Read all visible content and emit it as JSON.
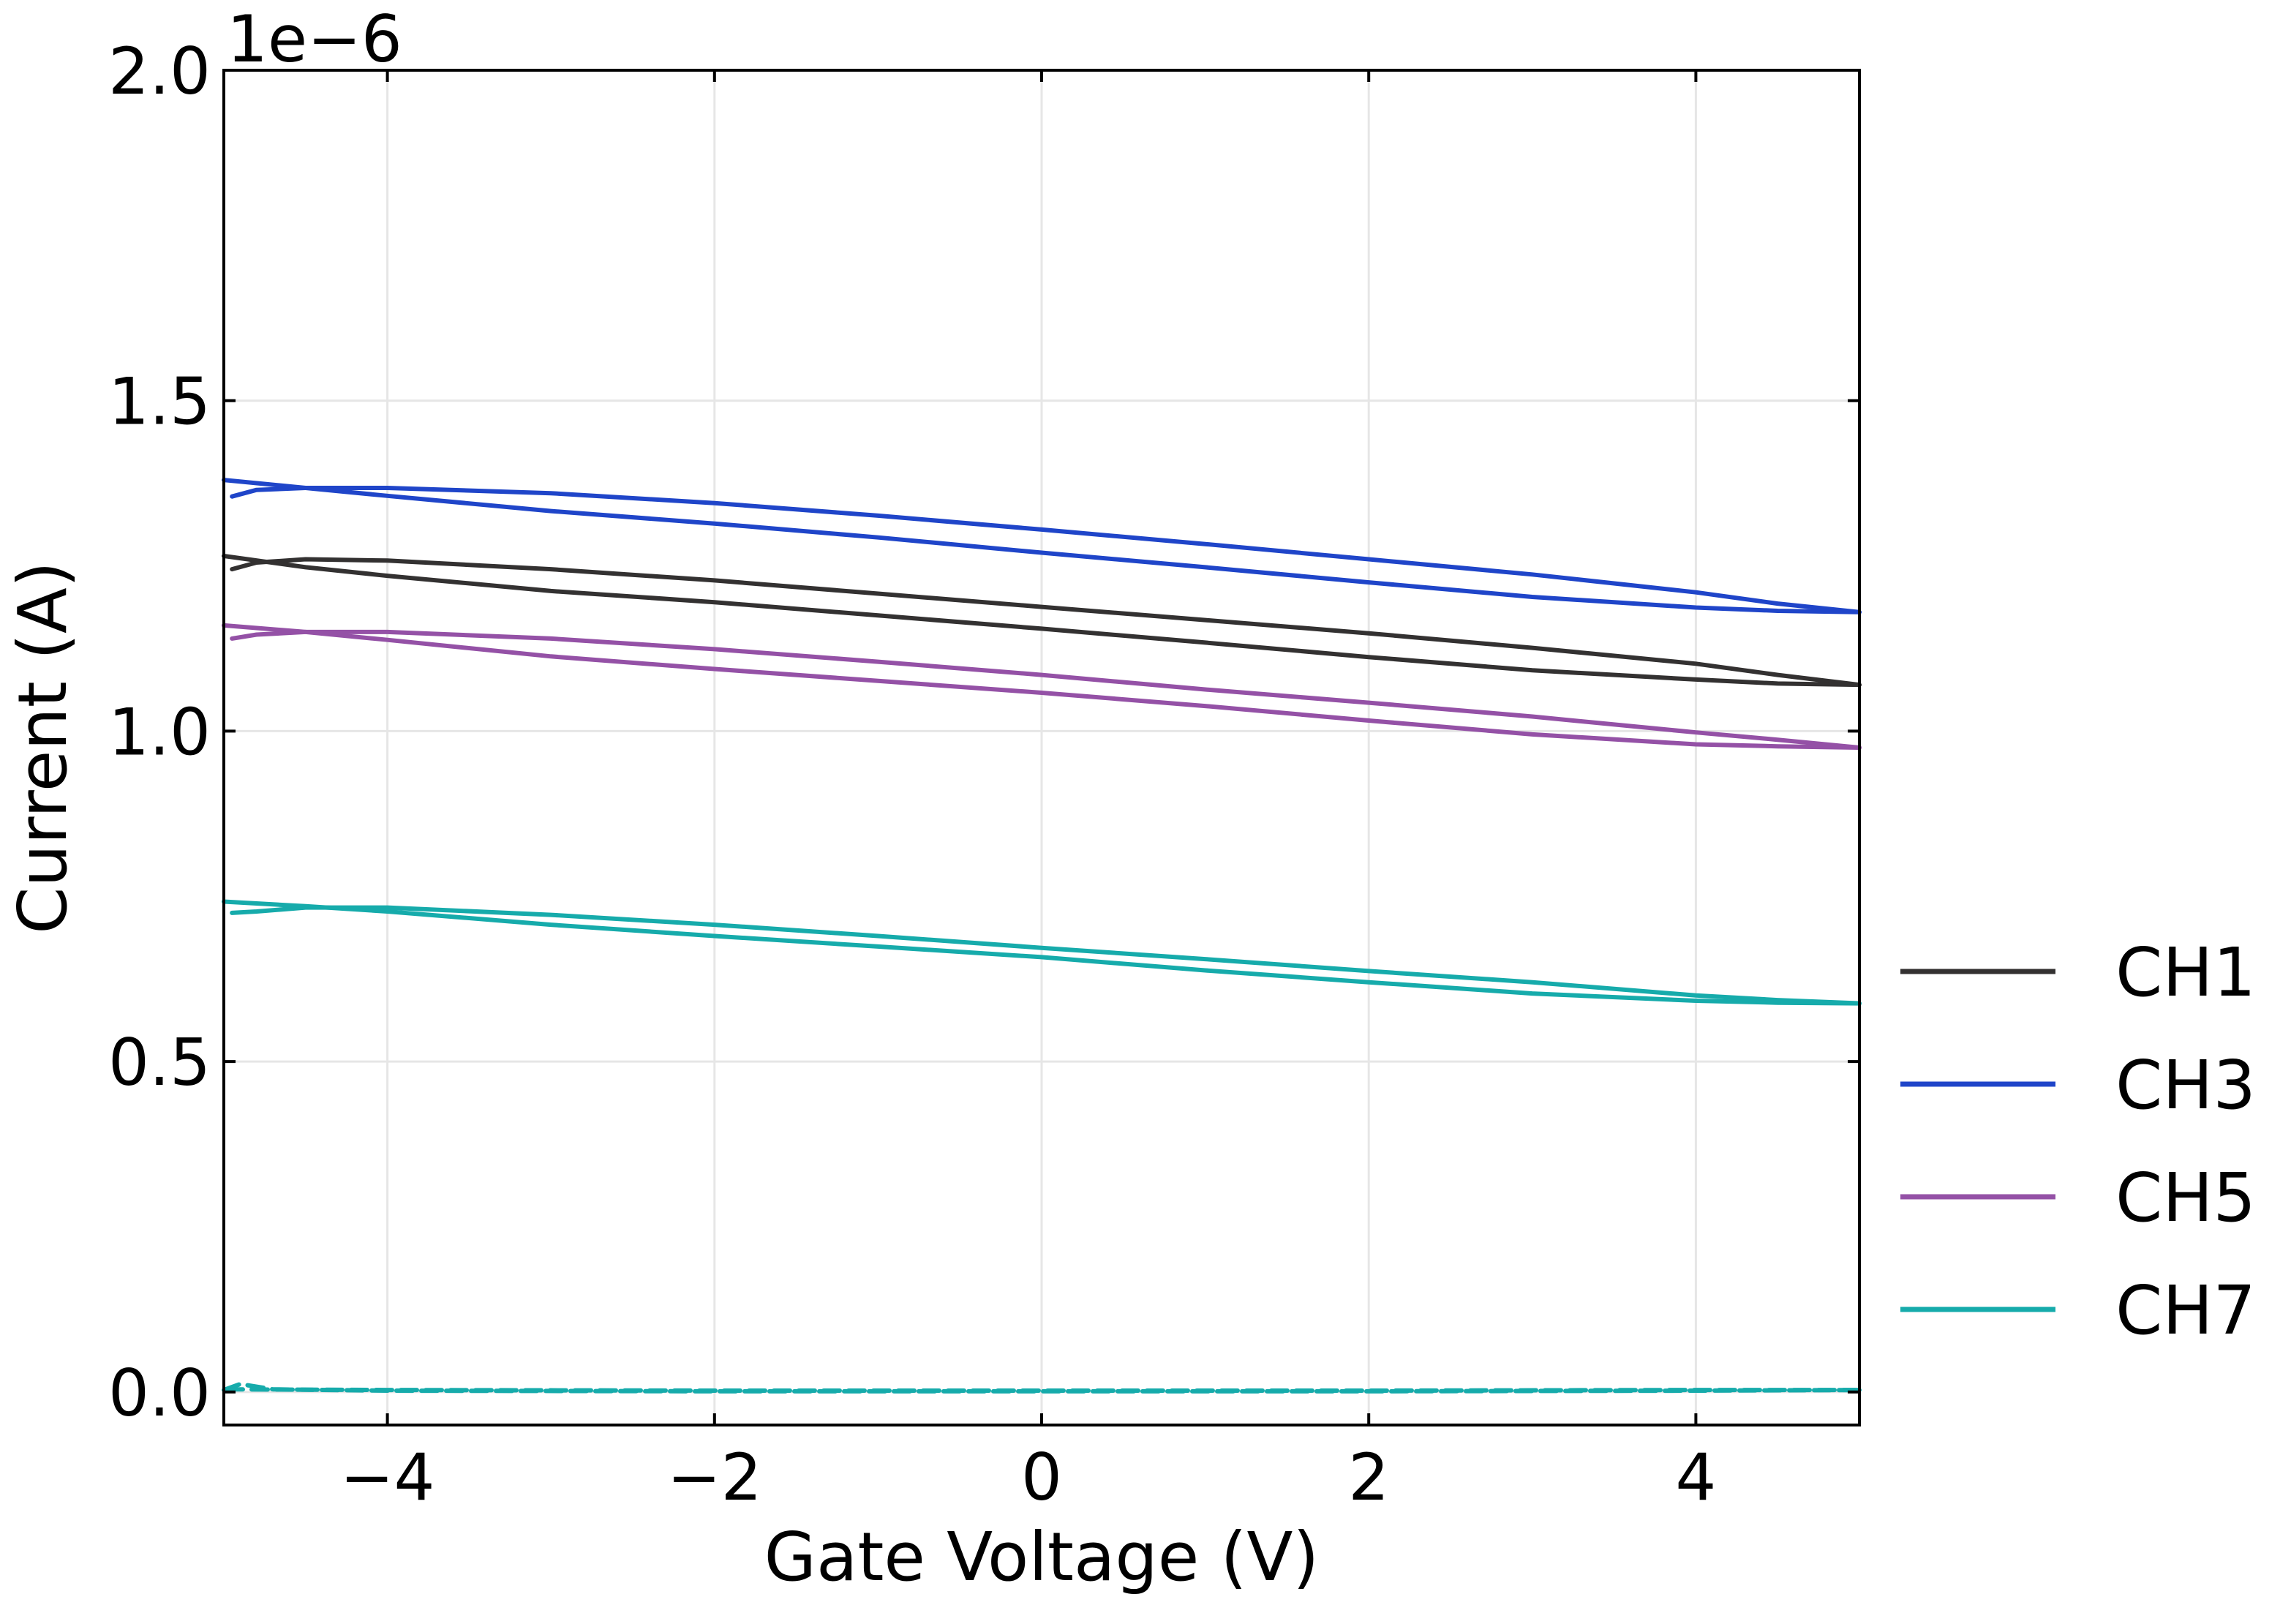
{
  "chart_data": {
    "type": "line",
    "xlabel": "Gate Voltage (V)",
    "ylabel": "Current (A)",
    "y_multiplier_label": "1e−6",
    "xlim": [
      -5,
      5
    ],
    "ylim": [
      -0.05,
      2.0
    ],
    "x_ticks": [
      -4,
      -2,
      0,
      2,
      4
    ],
    "x_tick_labels": [
      "−4",
      "−2",
      "0",
      "2",
      "4"
    ],
    "y_ticks": [
      0.0,
      0.5,
      1.0,
      1.5,
      2.0
    ],
    "y_tick_labels": [
      "0.0",
      "0.5",
      "1.0",
      "1.5",
      "2.0"
    ],
    "grid": true,
    "legend_position": "right, outside plot",
    "series": [
      {
        "name": "CH1",
        "color": "#333131",
        "style": "solid",
        "sweeps": [
          {
            "x": [
              -4.95,
              -4.8,
              -4.5,
              -4.0,
              -3.0,
              -2.0,
              -1.0,
              0.0,
              1.0,
              2.0,
              3.0,
              4.0,
              4.5,
              5.0
            ],
            "y": [
              1.245,
              1.255,
              1.26,
              1.258,
              1.245,
              1.228,
              1.208,
              1.188,
              1.168,
              1.148,
              1.126,
              1.102,
              1.085,
              1.07
            ]
          },
          {
            "x": [
              5.0,
              4.5,
              4.0,
              3.0,
              2.0,
              1.0,
              0.0,
              -1.0,
              -2.0,
              -3.0,
              -4.0,
              -4.5,
              -5.0
            ],
            "y": [
              1.07,
              1.072,
              1.078,
              1.092,
              1.112,
              1.134,
              1.155,
              1.175,
              1.195,
              1.212,
              1.235,
              1.248,
              1.265
            ]
          }
        ]
      },
      {
        "name": "CH3",
        "color": "#1f45c9",
        "style": "solid",
        "sweeps": [
          {
            "x": [
              -4.95,
              -4.8,
              -4.5,
              -4.0,
              -3.0,
              -2.0,
              -1.0,
              0.0,
              1.0,
              2.0,
              3.0,
              4.0,
              4.5,
              5.0
            ],
            "y": [
              1.355,
              1.365,
              1.368,
              1.368,
              1.36,
              1.345,
              1.326,
              1.305,
              1.283,
              1.26,
              1.237,
              1.21,
              1.193,
              1.18
            ]
          },
          {
            "x": [
              5.0,
              4.5,
              4.0,
              3.0,
              2.0,
              1.0,
              0.0,
              -1.0,
              -2.0,
              -3.0,
              -4.0,
              -4.5,
              -5.0
            ],
            "y": [
              1.18,
              1.182,
              1.187,
              1.203,
              1.225,
              1.248,
              1.27,
              1.293,
              1.314,
              1.333,
              1.356,
              1.368,
              1.38
            ]
          }
        ]
      },
      {
        "name": "CH5",
        "color": "#9451a6",
        "style": "solid",
        "sweeps": [
          {
            "x": [
              -4.95,
              -4.8,
              -4.5,
              -4.0,
              -3.0,
              -2.0,
              -1.0,
              0.0,
              1.0,
              2.0,
              3.0,
              4.0,
              4.5,
              5.0
            ],
            "y": [
              1.14,
              1.146,
              1.15,
              1.15,
              1.14,
              1.124,
              1.105,
              1.085,
              1.063,
              1.043,
              1.022,
              0.998,
              0.987,
              0.975
            ]
          },
          {
            "x": [
              5.0,
              4.5,
              4.0,
              3.0,
              2.0,
              1.0,
              0.0,
              -1.0,
              -2.0,
              -3.0,
              -4.0,
              -4.5,
              -5.0
            ],
            "y": [
              0.975,
              0.977,
              0.98,
              0.995,
              1.016,
              1.038,
              1.058,
              1.076,
              1.094,
              1.113,
              1.138,
              1.15,
              1.16
            ]
          }
        ]
      },
      {
        "name": "CH7",
        "color": "#16abab",
        "style": "solid",
        "sweeps": [
          {
            "x": [
              -4.95,
              -4.8,
              -4.5,
              -4.0,
              -3.0,
              -2.0,
              -1.0,
              0.0,
              1.0,
              2.0,
              3.0,
              4.0,
              4.5,
              5.0
            ],
            "y": [
              0.725,
              0.727,
              0.733,
              0.733,
              0.722,
              0.707,
              0.69,
              0.672,
              0.655,
              0.637,
              0.62,
              0.6,
              0.593,
              0.588
            ]
          },
          {
            "x": [
              5.0,
              4.5,
              4.0,
              3.0,
              2.0,
              1.0,
              0.0,
              -1.0,
              -2.0,
              -3.0,
              -4.0,
              -4.5,
              -5.0
            ],
            "y": [
              0.588,
              0.589,
              0.592,
              0.603,
              0.62,
              0.638,
              0.658,
              0.674,
              0.69,
              0.707,
              0.727,
              0.735,
              0.742
            ]
          }
        ]
      },
      {
        "name": "",
        "color": "#16abab",
        "style": "dashed",
        "sweeps": [
          {
            "x": [
              -5.0,
              -4.9,
              -4.7,
              -4.0,
              -2.0,
              0.0,
              2.0,
              4.0,
              5.0
            ],
            "y": [
              0.003,
              0.012,
              0.004,
              0.002,
              0.001,
              0.001,
              0.001,
              0.002,
              0.003
            ]
          },
          {
            "x": [
              5.0,
              4.0,
              2.0,
              0.0,
              -2.0,
              -4.0,
              -5.0
            ],
            "y": [
              0.003,
              0.003,
              0.002,
              0.002,
              0.002,
              0.003,
              0.004
            ]
          }
        ]
      }
    ]
  }
}
